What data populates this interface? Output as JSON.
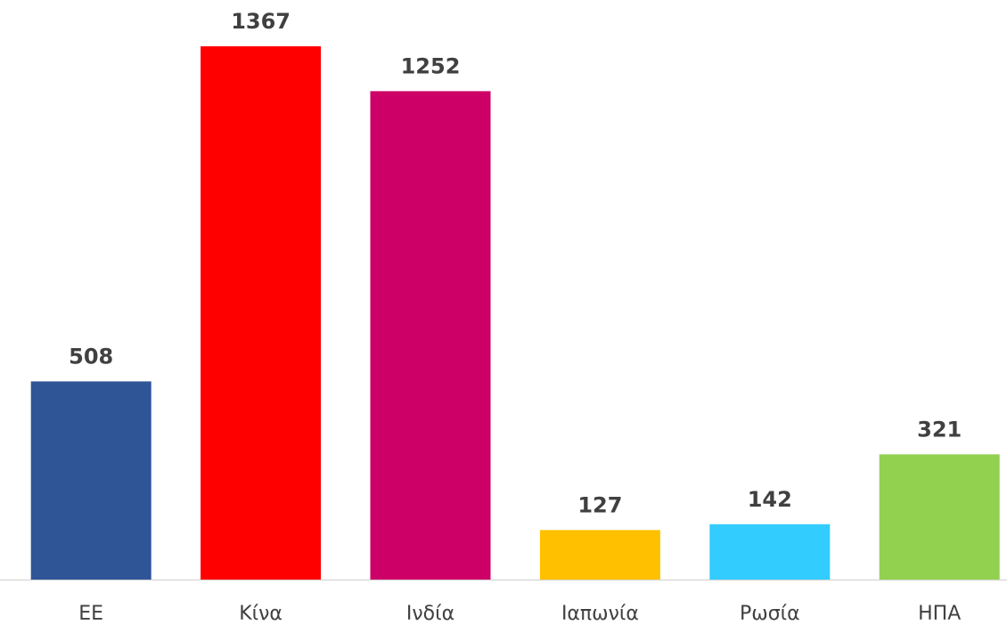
{
  "chart_data": {
    "type": "bar",
    "categories": [
      "ΕΕ",
      "Κίνα",
      "Ινδία",
      "Ιαπωνία",
      "Ρωσία",
      "ΗΠΑ"
    ],
    "values": [
      508,
      1367,
      1252,
      127,
      142,
      321
    ],
    "colors": [
      "#2f5597",
      "#ff0000",
      "#cc0066",
      "#ffc000",
      "#33ccff",
      "#92d050"
    ]
  }
}
